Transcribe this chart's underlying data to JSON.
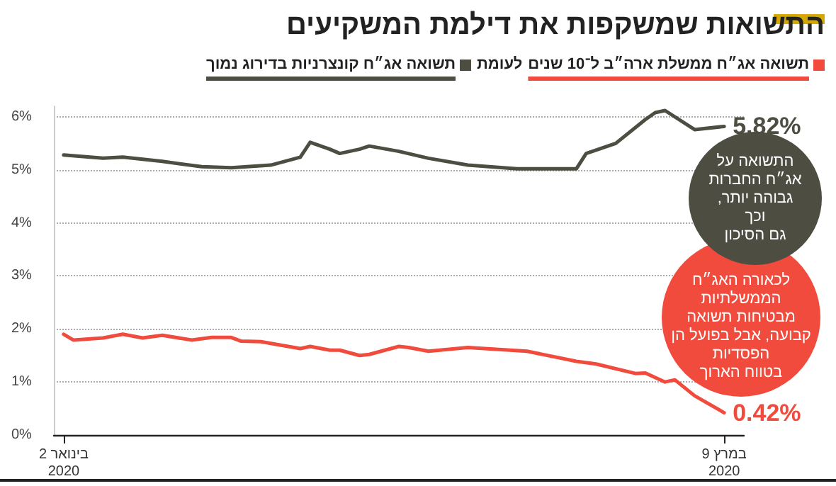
{
  "chart_data": {
    "type": "line",
    "title": "התשואות שמשקפות את דילמת המשקיעים",
    "subtitle": "לעומת",
    "xlim": [
      "2020-01-01",
      "2020-03-11"
    ],
    "xticks": [
      {
        "value": "2020-01-02",
        "label": "2 בינואר\n2020"
      },
      {
        "value": "2020-03-09",
        "label": "9 במרץ\n2020"
      }
    ],
    "ylim": [
      0,
      6.2
    ],
    "yticks": [
      {
        "value": 0,
        "label": "0%"
      },
      {
        "value": 1,
        "label": "1%"
      },
      {
        "value": 2,
        "label": "2%"
      },
      {
        "value": 3,
        "label": "3%"
      },
      {
        "value": 4,
        "label": "4%"
      },
      {
        "value": 5,
        "label": "5%"
      },
      {
        "value": 6,
        "label": "6%"
      }
    ],
    "grid": "y",
    "legend": "top",
    "marker": "none",
    "line_style": "solid",
    "series": [
      {
        "name": "תשואה אג״ח ממשלת ארה״ב ל־10 שנים",
        "color": "#f04b3c",
        "x": [
          "2020-01-02",
          "2020-01-03",
          "2020-01-06",
          "2020-01-08",
          "2020-01-10",
          "2020-01-12",
          "2020-01-15",
          "2020-01-17",
          "2020-01-19",
          "2020-01-20",
          "2020-01-22",
          "2020-01-26",
          "2020-01-27",
          "2020-01-29",
          "2020-01-30",
          "2020-02-01",
          "2020-02-02",
          "2020-02-05",
          "2020-02-06",
          "2020-02-08",
          "2020-02-12",
          "2020-02-18",
          "2020-02-23",
          "2020-02-25",
          "2020-02-29",
          "2020-03-01",
          "2020-03-03",
          "2020-03-04",
          "2020-03-06",
          "2020-03-09"
        ],
        "values": [
          1.9,
          1.79,
          1.83,
          1.9,
          1.83,
          1.88,
          1.79,
          1.84,
          1.84,
          1.77,
          1.76,
          1.63,
          1.67,
          1.6,
          1.6,
          1.5,
          1.52,
          1.67,
          1.65,
          1.58,
          1.65,
          1.58,
          1.39,
          1.34,
          1.16,
          1.17,
          1.0,
          1.04,
          0.74,
          0.42
        ],
        "value_labels": [
          null,
          null,
          null,
          null,
          null,
          null,
          null,
          null,
          null,
          null,
          null,
          null,
          null,
          null,
          null,
          null,
          null,
          null,
          null,
          null,
          null,
          null,
          null,
          null,
          null,
          null,
          null,
          null,
          null,
          "0.42%"
        ]
      },
      {
        "name": "תשואה אג״ח קונצרניות בדירוג נמוך",
        "color": "#4d4d42",
        "x": [
          "2020-01-02",
          "2020-01-06",
          "2020-01-08",
          "2020-01-12",
          "2020-01-16",
          "2020-01-19",
          "2020-01-23",
          "2020-01-26",
          "2020-01-27",
          "2020-01-29",
          "2020-01-30",
          "2020-02-01",
          "2020-02-02",
          "2020-02-05",
          "2020-02-08",
          "2020-02-12",
          "2020-02-17",
          "2020-02-23",
          "2020-02-24",
          "2020-02-27",
          "2020-03-01",
          "2020-03-02",
          "2020-03-03",
          "2020-03-06",
          "2020-03-09"
        ],
        "values": [
          5.28,
          5.22,
          5.24,
          5.16,
          5.06,
          5.04,
          5.09,
          5.24,
          5.52,
          5.39,
          5.31,
          5.39,
          5.45,
          5.35,
          5.22,
          5.09,
          5.02,
          5.02,
          5.31,
          5.5,
          5.95,
          6.08,
          6.12,
          5.76,
          5.82
        ],
        "value_labels": [
          null,
          null,
          null,
          null,
          null,
          null,
          null,
          null,
          null,
          null,
          null,
          null,
          null,
          null,
          null,
          null,
          null,
          null,
          null,
          null,
          null,
          null,
          null,
          null,
          "5.82%"
        ]
      }
    ],
    "annotations": [
      "התשואה על\nאג״ח החברות\nגבוהה יותר,\nוכך\nגם הסיכון",
      "לכאורה האג״ח\nהממשלתיות\nמבטיחות תשואה\nקבועה, אבל בפועל הן\nהפסדיות\nבטווח הארוך"
    ]
  }
}
